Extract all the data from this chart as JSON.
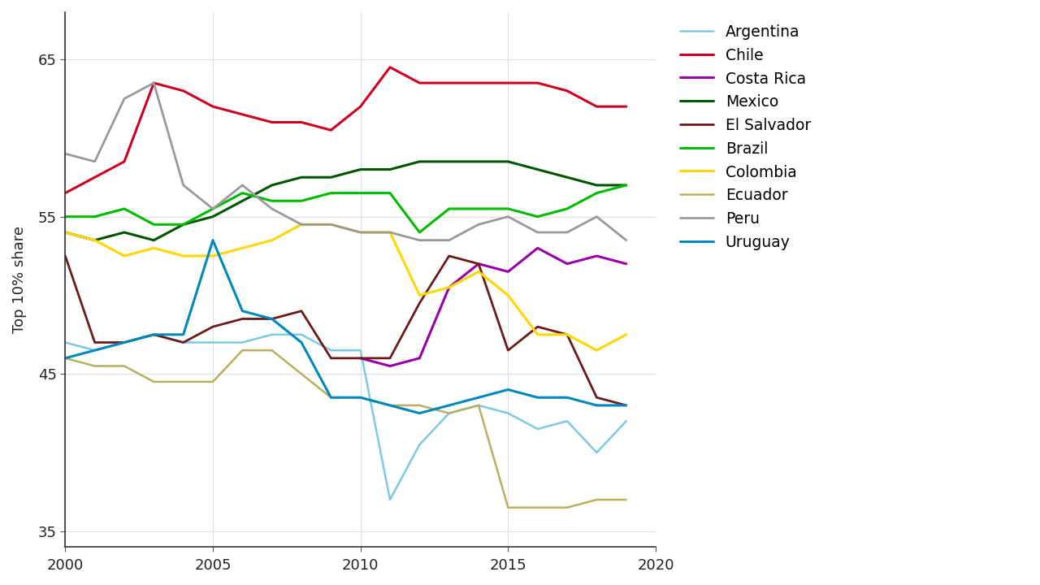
{
  "ylabel": "Top 10% share",
  "xlim": [
    2000,
    2020
  ],
  "ylim": [
    34,
    68
  ],
  "yticks": [
    35,
    45,
    55,
    65
  ],
  "xticks": [
    2000,
    2005,
    2010,
    2015,
    2020
  ],
  "bg_color": "#ffffff",
  "grid_color": "#e0e0e0",
  "series": [
    {
      "name": "Argentina",
      "color": "#7EC8E3",
      "lw": 1.8,
      "data": [
        [
          2000,
          47.0
        ],
        [
          2001,
          46.5
        ],
        [
          2002,
          47.0
        ],
        [
          2003,
          47.5
        ],
        [
          2004,
          47.0
        ],
        [
          2005,
          47.0
        ],
        [
          2006,
          47.0
        ],
        [
          2007,
          47.5
        ],
        [
          2008,
          47.5
        ],
        [
          2009,
          46.5
        ],
        [
          2010,
          46.5
        ],
        [
          2011,
          37.0
        ],
        [
          2012,
          40.5
        ],
        [
          2013,
          42.5
        ],
        [
          2014,
          43.0
        ],
        [
          2015,
          42.5
        ],
        [
          2016,
          41.5
        ],
        [
          2017,
          42.0
        ],
        [
          2018,
          40.0
        ],
        [
          2019,
          42.0
        ]
      ]
    },
    {
      "name": "Chile",
      "color": "#CC0022",
      "lw": 2.2,
      "data": [
        [
          2000,
          56.5
        ],
        [
          2001,
          57.5
        ],
        [
          2002,
          58.5
        ],
        [
          2003,
          63.5
        ],
        [
          2004,
          63.0
        ],
        [
          2005,
          62.0
        ],
        [
          2006,
          61.5
        ],
        [
          2007,
          61.0
        ],
        [
          2008,
          61.0
        ],
        [
          2009,
          60.5
        ],
        [
          2010,
          62.0
        ],
        [
          2011,
          64.5
        ],
        [
          2012,
          63.5
        ],
        [
          2013,
          63.5
        ],
        [
          2014,
          63.5
        ],
        [
          2015,
          63.5
        ],
        [
          2016,
          63.5
        ],
        [
          2017,
          63.0
        ],
        [
          2018,
          62.0
        ],
        [
          2019,
          62.0
        ]
      ]
    },
    {
      "name": "Costa Rica",
      "color": "#9900AA",
      "lw": 2.2,
      "data": [
        [
          2010,
          46.0
        ],
        [
          2011,
          45.5
        ],
        [
          2012,
          46.0
        ],
        [
          2013,
          50.5
        ],
        [
          2014,
          52.0
        ],
        [
          2015,
          51.5
        ],
        [
          2016,
          53.0
        ],
        [
          2017,
          52.0
        ],
        [
          2018,
          52.5
        ],
        [
          2019,
          52.0
        ]
      ]
    },
    {
      "name": "Mexico",
      "color": "#005500",
      "lw": 2.2,
      "data": [
        [
          2000,
          54.0
        ],
        [
          2001,
          53.5
        ],
        [
          2002,
          54.0
        ],
        [
          2003,
          53.5
        ],
        [
          2004,
          54.5
        ],
        [
          2005,
          55.0
        ],
        [
          2006,
          56.0
        ],
        [
          2007,
          57.0
        ],
        [
          2008,
          57.5
        ],
        [
          2009,
          57.5
        ],
        [
          2010,
          58.0
        ],
        [
          2011,
          58.0
        ],
        [
          2012,
          58.5
        ],
        [
          2013,
          58.5
        ],
        [
          2014,
          58.5
        ],
        [
          2015,
          58.5
        ],
        [
          2016,
          58.0
        ],
        [
          2017,
          57.5
        ],
        [
          2018,
          57.0
        ],
        [
          2019,
          57.0
        ]
      ]
    },
    {
      "name": "El Salvador",
      "color": "#6B1A1A",
      "lw": 2.0,
      "data": [
        [
          2000,
          52.5
        ],
        [
          2001,
          47.0
        ],
        [
          2002,
          47.0
        ],
        [
          2003,
          47.5
        ],
        [
          2004,
          47.0
        ],
        [
          2005,
          48.0
        ],
        [
          2006,
          48.5
        ],
        [
          2007,
          48.5
        ],
        [
          2008,
          49.0
        ],
        [
          2009,
          46.0
        ],
        [
          2010,
          46.0
        ],
        [
          2011,
          46.0
        ],
        [
          2012,
          49.5
        ],
        [
          2013,
          52.5
        ],
        [
          2014,
          52.0
        ],
        [
          2015,
          46.5
        ],
        [
          2016,
          48.0
        ],
        [
          2017,
          47.5
        ],
        [
          2018,
          43.5
        ],
        [
          2019,
          43.0
        ]
      ]
    },
    {
      "name": "Brazil",
      "color": "#00BB00",
      "lw": 2.2,
      "data": [
        [
          2000,
          55.0
        ],
        [
          2001,
          55.0
        ],
        [
          2002,
          55.5
        ],
        [
          2003,
          54.5
        ],
        [
          2004,
          54.5
        ],
        [
          2005,
          55.5
        ],
        [
          2006,
          56.5
        ],
        [
          2007,
          56.0
        ],
        [
          2008,
          56.0
        ],
        [
          2009,
          56.5
        ],
        [
          2010,
          56.5
        ],
        [
          2011,
          56.5
        ],
        [
          2012,
          54.0
        ],
        [
          2013,
          55.5
        ],
        [
          2014,
          55.5
        ],
        [
          2015,
          55.5
        ],
        [
          2016,
          55.0
        ],
        [
          2017,
          55.5
        ],
        [
          2018,
          56.5
        ],
        [
          2019,
          57.0
        ]
      ]
    },
    {
      "name": "Colombia",
      "color": "#FFD700",
      "lw": 2.2,
      "data": [
        [
          2000,
          54.0
        ],
        [
          2001,
          53.5
        ],
        [
          2002,
          52.5
        ],
        [
          2003,
          53.0
        ],
        [
          2004,
          52.5
        ],
        [
          2005,
          52.5
        ],
        [
          2006,
          53.0
        ],
        [
          2007,
          53.5
        ],
        [
          2008,
          54.5
        ],
        [
          2009,
          54.5
        ],
        [
          2010,
          54.0
        ],
        [
          2011,
          54.0
        ],
        [
          2012,
          50.0
        ],
        [
          2013,
          50.5
        ],
        [
          2014,
          51.5
        ],
        [
          2015,
          50.0
        ],
        [
          2016,
          47.5
        ],
        [
          2017,
          47.5
        ],
        [
          2018,
          46.5
        ],
        [
          2019,
          47.5
        ]
      ]
    },
    {
      "name": "Ecuador",
      "color": "#B8B060",
      "lw": 1.8,
      "data": [
        [
          2000,
          46.0
        ],
        [
          2001,
          45.5
        ],
        [
          2002,
          45.5
        ],
        [
          2003,
          44.5
        ],
        [
          2004,
          44.5
        ],
        [
          2005,
          44.5
        ],
        [
          2006,
          46.5
        ],
        [
          2007,
          46.5
        ],
        [
          2008,
          45.0
        ],
        [
          2009,
          43.5
        ],
        [
          2010,
          43.5
        ],
        [
          2011,
          43.0
        ],
        [
          2012,
          43.0
        ],
        [
          2013,
          42.5
        ],
        [
          2014,
          43.0
        ],
        [
          2015,
          36.5
        ],
        [
          2016,
          36.5
        ],
        [
          2017,
          36.5
        ],
        [
          2018,
          37.0
        ],
        [
          2019,
          37.0
        ]
      ]
    },
    {
      "name": "Peru",
      "color": "#999999",
      "lw": 2.0,
      "data": [
        [
          2000,
          59.0
        ],
        [
          2001,
          58.5
        ],
        [
          2002,
          62.5
        ],
        [
          2003,
          63.5
        ],
        [
          2004,
          57.0
        ],
        [
          2005,
          55.5
        ],
        [
          2006,
          57.0
        ],
        [
          2007,
          55.5
        ],
        [
          2008,
          54.5
        ],
        [
          2009,
          54.5
        ],
        [
          2010,
          54.0
        ],
        [
          2011,
          54.0
        ],
        [
          2012,
          53.5
        ],
        [
          2013,
          53.5
        ],
        [
          2014,
          54.5
        ],
        [
          2015,
          55.0
        ],
        [
          2016,
          54.0
        ],
        [
          2017,
          54.0
        ],
        [
          2018,
          55.0
        ],
        [
          2019,
          53.5
        ]
      ]
    },
    {
      "name": "Uruguay",
      "color": "#0088BB",
      "lw": 2.2,
      "data": [
        [
          2000,
          46.0
        ],
        [
          2001,
          46.5
        ],
        [
          2002,
          47.0
        ],
        [
          2003,
          47.5
        ],
        [
          2004,
          47.5
        ],
        [
          2005,
          53.5
        ],
        [
          2006,
          49.0
        ],
        [
          2007,
          48.5
        ],
        [
          2008,
          47.0
        ],
        [
          2009,
          43.5
        ],
        [
          2010,
          43.5
        ],
        [
          2011,
          43.0
        ],
        [
          2012,
          42.5
        ],
        [
          2013,
          43.0
        ],
        [
          2014,
          43.5
        ],
        [
          2015,
          44.0
        ],
        [
          2016,
          43.5
        ],
        [
          2017,
          43.5
        ],
        [
          2018,
          43.0
        ],
        [
          2019,
          43.0
        ]
      ]
    }
  ]
}
